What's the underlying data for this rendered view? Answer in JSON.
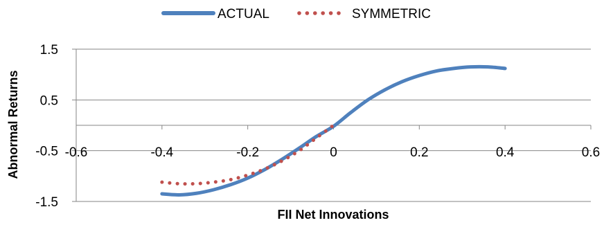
{
  "chart_data": {
    "type": "line",
    "xlabel": "FII Net Innovations",
    "ylabel": "Abnormal Returns",
    "xlim": [
      -0.6,
      0.6
    ],
    "ylim": [
      -1.5,
      1.5
    ],
    "x_ticks": [
      -0.6,
      -0.4,
      -0.2,
      0,
      0.2,
      0.4,
      0.6
    ],
    "x_tick_labels": [
      "-0.6",
      "-0.4",
      "-0.2",
      "0",
      "0.2",
      "0.4",
      "0.6"
    ],
    "y_ticks": [
      -1.5,
      -0.5,
      0.5,
      1.5
    ],
    "y_tick_labels": [
      "-1.5",
      "-0.5",
      "0.5",
      "1.5"
    ],
    "grid": "horizontal",
    "legend": "top-center",
    "series": [
      {
        "name": "ACTUAL",
        "style": "solid",
        "color": "#4f81bd",
        "x": [
          -0.4,
          -0.36,
          -0.32,
          -0.28,
          -0.24,
          -0.2,
          -0.16,
          -0.12,
          -0.08,
          -0.04,
          0,
          0.04,
          0.08,
          0.12,
          0.16,
          0.2,
          0.24,
          0.28,
          0.32,
          0.36,
          0.4
        ],
        "y": [
          -1.35,
          -1.37,
          -1.34,
          -1.27,
          -1.17,
          -1.04,
          -0.87,
          -0.67,
          -0.45,
          -0.22,
          -0.02,
          0.25,
          0.5,
          0.7,
          0.86,
          0.98,
          1.07,
          1.12,
          1.15,
          1.15,
          1.12
        ]
      },
      {
        "name": "SYMMETRIC",
        "style": "dotted",
        "color": "#c0504d",
        "x": [
          -0.4,
          -0.36,
          -0.32,
          -0.28,
          -0.24,
          -0.2,
          -0.16,
          -0.12,
          -0.08,
          -0.04,
          0
        ],
        "y": [
          -1.12,
          -1.15,
          -1.15,
          -1.12,
          -1.07,
          -0.98,
          -0.86,
          -0.7,
          -0.5,
          -0.25,
          0.0
        ]
      }
    ]
  }
}
